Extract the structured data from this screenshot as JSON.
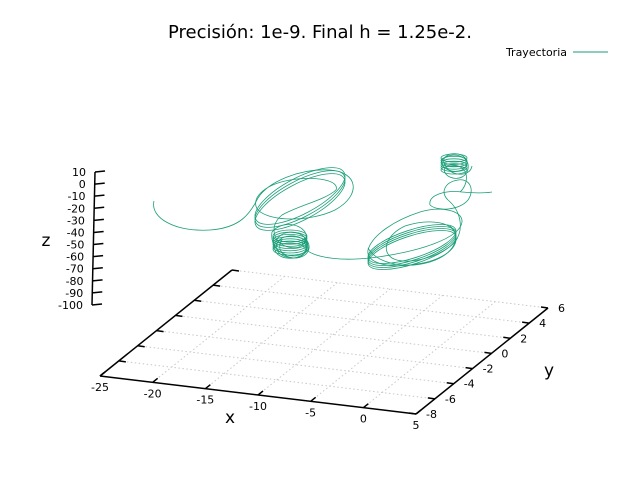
{
  "chart_data": {
    "type": "line",
    "title": "Precisión: 1e-9. Final h = 1.25e-2.",
    "xlabel": "x",
    "ylabel": "y",
    "zlabel": "z",
    "xlim": [
      -25,
      5
    ],
    "ylim": [
      -8,
      6
    ],
    "zlim": [
      -100,
      10
    ],
    "x_ticks": [
      "-25",
      "-20",
      "-15",
      "-10",
      "-5",
      "0",
      "5"
    ],
    "y_ticks": [
      "-8",
      "-6",
      "-4",
      "-2",
      "0",
      "2",
      "4",
      "6"
    ],
    "z_ticks": [
      "10",
      "0",
      "-10",
      "-20",
      "-30",
      "-40",
      "-50",
      "-60",
      "-70",
      "-80",
      "-90",
      "-100"
    ],
    "grid": true,
    "legend_position": "top-right",
    "series": [
      {
        "name": "Trayectoria",
        "color": "#1a9e77",
        "description_points": []
      }
    ]
  }
}
